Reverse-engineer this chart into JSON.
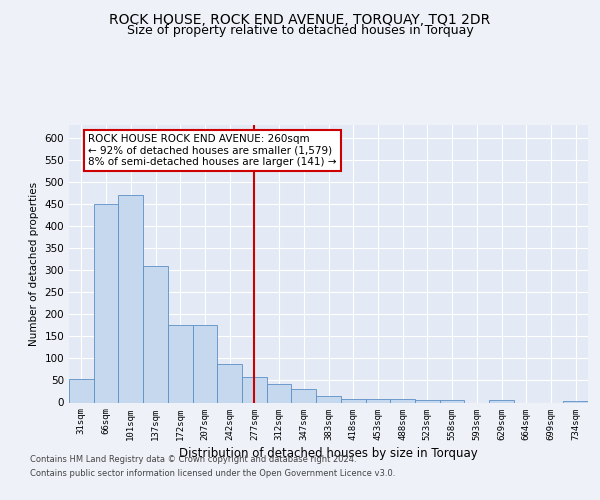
{
  "title": "ROCK HOUSE, ROCK END AVENUE, TORQUAY, TQ1 2DR",
  "subtitle": "Size of property relative to detached houses in Torquay",
  "xlabel": "Distribution of detached houses by size in Torquay",
  "ylabel": "Number of detached properties",
  "categories": [
    "31sqm",
    "66sqm",
    "101sqm",
    "137sqm",
    "172sqm",
    "207sqm",
    "242sqm",
    "277sqm",
    "312sqm",
    "347sqm",
    "383sqm",
    "418sqm",
    "453sqm",
    "488sqm",
    "523sqm",
    "558sqm",
    "593sqm",
    "629sqm",
    "664sqm",
    "699sqm",
    "734sqm"
  ],
  "values": [
    53,
    450,
    470,
    310,
    175,
    175,
    88,
    58,
    43,
    30,
    15,
    9,
    8,
    7,
    6,
    6,
    0,
    5,
    0,
    0,
    4
  ],
  "bar_color": "#c5d8ed",
  "bar_edge_color": "#5b8fc7",
  "vline_x_index": 7,
  "vline_color": "#cc0000",
  "annotation_text": "ROCK HOUSE ROCK END AVENUE: 260sqm\n← 92% of detached houses are smaller (1,579)\n8% of semi-detached houses are larger (141) →",
  "annotation_box_color": "#cc0000",
  "ylim": [
    0,
    630
  ],
  "yticks": [
    0,
    50,
    100,
    150,
    200,
    250,
    300,
    350,
    400,
    450,
    500,
    550,
    600
  ],
  "footer1": "Contains HM Land Registry data © Crown copyright and database right 2024.",
  "footer2": "Contains public sector information licensed under the Open Government Licence v3.0.",
  "background_color": "#eef2f8",
  "plot_background": "#e4eaf5",
  "grid_color": "#ffffff",
  "title_fontsize": 10,
  "subtitle_fontsize": 9
}
